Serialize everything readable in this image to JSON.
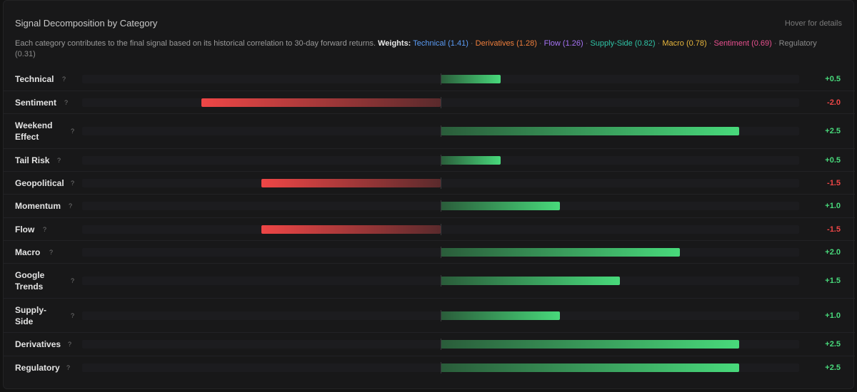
{
  "header": {
    "title": "Signal Decomposition by Category",
    "hover_hint": "Hover for details"
  },
  "description": {
    "text": "Each category contributes to the final signal based on its historical correlation to 30-day forward returns.",
    "weights_label": "Weights:",
    "weights": [
      {
        "name": "Technical",
        "weight": "(1.41)",
        "color": "#5b9cf5"
      },
      {
        "name": "Derivatives",
        "weight": "(1.28)",
        "color": "#f07f3c"
      },
      {
        "name": "Flow",
        "weight": "(1.26)",
        "color": "#a673f5"
      },
      {
        "name": "Supply-Side",
        "weight": "(0.82)",
        "color": "#2fc4a6"
      },
      {
        "name": "Macro",
        "weight": "(0.78)",
        "color": "#e8b63c"
      },
      {
        "name": "Sentiment",
        "weight": "(0.69)",
        "color": "#e9508f"
      },
      {
        "name": "Regulatory",
        "weight": "(0.31)",
        "color": "#8a8a8a"
      }
    ],
    "separator": " · "
  },
  "chart_data": {
    "type": "bar",
    "orientation": "horizontal",
    "xlim": [
      -3,
      3
    ],
    "categories": [
      "Technical",
      "Sentiment",
      "Weekend Effect",
      "Tail Risk",
      "Geopolitical",
      "Momentum",
      "Flow",
      "Macro",
      "Google Trends",
      "Supply-Side",
      "Derivatives",
      "Regulatory"
    ],
    "values": [
      0.5,
      -2.0,
      2.5,
      0.5,
      -1.5,
      1.0,
      -1.5,
      2.0,
      1.5,
      1.0,
      2.5,
      2.5
    ],
    "value_labels": [
      "+0.5",
      "-2.0",
      "+2.5",
      "+0.5",
      "-1.5",
      "+1.0",
      "-1.5",
      "+2.0",
      "+1.5",
      "+1.0",
      "+2.5",
      "+2.5"
    ],
    "row_labels": [
      "Technical",
      "Sentiment",
      "Weekend Effect",
      "Tail Risk",
      "Geopolitical",
      "Momentum",
      "Flow",
      "Macro",
      "Google Trends",
      "Supply-Side",
      "Derivatives",
      "Regulatory"
    ],
    "help_glyph": "?",
    "positive_color": "#48d97b",
    "negative_color": "#ee4646"
  }
}
